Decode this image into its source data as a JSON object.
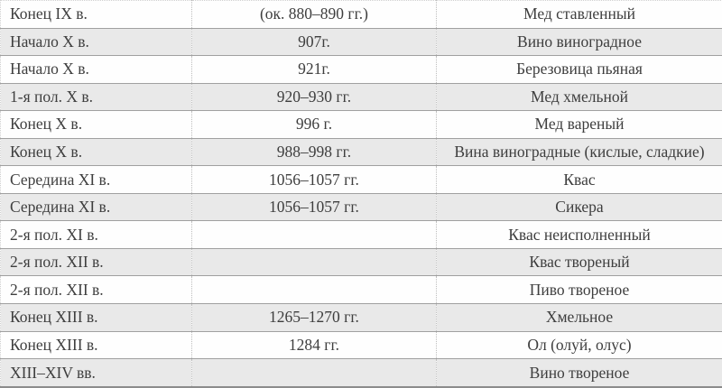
{
  "table": {
    "columns": [
      "period",
      "date",
      "drink"
    ],
    "rows": [
      {
        "period": "Конец IX в.",
        "date": "(ок. 880–890 гг.)",
        "drink": "Мед ставленный"
      },
      {
        "period": "Начало X в.",
        "date": "907г.",
        "drink": "Вино виноградное"
      },
      {
        "period": "Начало X в.",
        "date": "921г.",
        "drink": "Березовица пьяная"
      },
      {
        "period": "1-я пол. X в.",
        "date": "920–930 гг.",
        "drink": "Мед хмельной"
      },
      {
        "period": "Конец X в.",
        "date": "996 г.",
        "drink": "Мед вареный"
      },
      {
        "period": "Конец X в.",
        "date": "988–998 гг.",
        "drink": "Вина виноградные (кислые, сладкие)"
      },
      {
        "period": "Середина XI в.",
        "date": "1056–1057 гг.",
        "drink": "Квас"
      },
      {
        "period": "Середина XI в.",
        "date": "1056–1057 гг.",
        "drink": "Сикера"
      },
      {
        "period": "2-я пол. XI в.",
        "date": "",
        "drink": "Квас неисполненный"
      },
      {
        "period": "2-я пол. XII в.",
        "date": "",
        "drink": "Квас твореный"
      },
      {
        "period": "2-я пол. XII в.",
        "date": "",
        "drink": "Пиво твореное"
      },
      {
        "period": "Конец XIII в.",
        "date": "1265–1270 гг.",
        "drink": "Хмельное"
      },
      {
        "period": "Конец XIII в.",
        "date": "1284 гг.",
        "drink": "Ол (олуй, олус)"
      },
      {
        "period": "XIII–XIV вв.",
        "date": "",
        "drink": "Вино твореное"
      }
    ]
  },
  "colors": {
    "text": "#3e3e3e",
    "row_bg": "#fefefe",
    "row_alt_bg": "#e9e9e9",
    "row_border": "#a0a0a0",
    "column_divider": "#bdbdbd",
    "outer_border": "#cfcfcf",
    "bottom_border": "#8c8c8c"
  }
}
